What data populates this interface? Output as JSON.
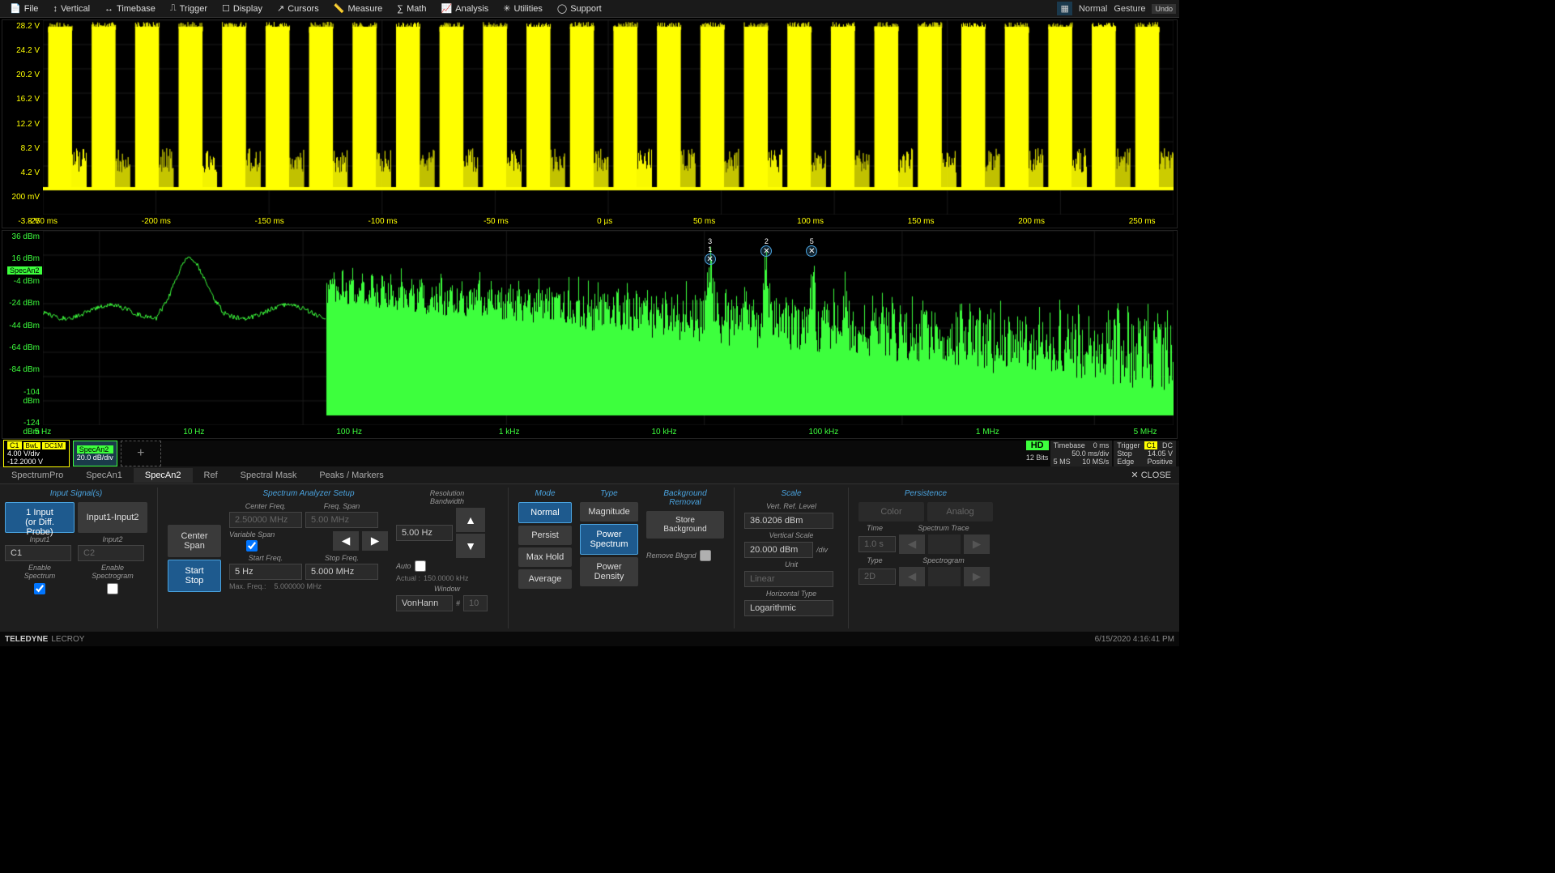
{
  "menubar": {
    "items": [
      "File",
      "Vertical",
      "Timebase",
      "Trigger",
      "Display",
      "Cursors",
      "Measure",
      "Math",
      "Analysis",
      "Utilities",
      "Support"
    ],
    "mode": "Normal",
    "gesture": "Gesture",
    "undo": "Undo"
  },
  "wave_time": {
    "y_labels": [
      "28.2 V",
      "24.2 V",
      "20.2 V",
      "16.2 V",
      "12.2 V",
      "8.2 V",
      "4.2 V",
      "200 mV",
      "-3.8 V"
    ],
    "x_labels": [
      "-250 ms",
      "-200 ms",
      "-150 ms",
      "-100 ms",
      "-50 ms",
      "0 µs",
      "50 ms",
      "100 ms",
      "150 ms",
      "200 ms",
      "250 ms"
    ],
    "color": "#ffff00",
    "grid_color": "#1a1a1a"
  },
  "wave_freq": {
    "y_labels": [
      "36 dBm",
      "16 dBm",
      "-4 dBm",
      "-24 dBm",
      "-44 dBm",
      "-64 dBm",
      "-84 dBm",
      "-104 dBm",
      "-124 dBm"
    ],
    "x_labels": [
      "5 Hz",
      "10 Hz",
      "100 Hz",
      "1 kHz",
      "10 kHz",
      "100 kHz",
      "1 MHz",
      "5 MHz"
    ],
    "color": "#3dff3d",
    "markers": [
      {
        "label": "3",
        "x_pct": 59,
        "label2": "1"
      },
      {
        "label": "2",
        "x_pct": 64
      },
      {
        "label": "5",
        "x_pct": 68
      }
    ],
    "specan_label": "SpecAn2"
  },
  "channels": {
    "c1": {
      "name": "C1",
      "bw": "BwL",
      "dc": "DC1M",
      "vdiv": "4.00 V/div",
      "offset": "-12.2000 V"
    },
    "specan": {
      "name": "SpecAn2",
      "scale": "20.0 dB/div"
    },
    "hd": "HD",
    "bits": "12 Bits",
    "timebase": {
      "label": "Timebase",
      "val": "0 ms",
      "scale": "50.0 ms/div",
      "rate": "10 MS/s",
      "samples": "5 MS"
    },
    "trigger": {
      "label": "Trigger",
      "ch": "C1",
      "mode": "DC",
      "level": "14.05 V",
      "action": "Stop",
      "edge": "Edge",
      "slope": "Positive"
    }
  },
  "tabs": {
    "items": [
      "SpectrumPro",
      "SpecAn1",
      "SpecAn2",
      "Ref",
      "Spectral Mask",
      "Peaks / Markers"
    ],
    "active": 2,
    "close": "CLOSE"
  },
  "panel": {
    "input_signals": {
      "title": "Input Signal(s)",
      "btn1": "1 Input\n(or Diff. Probe)",
      "btn2": "Input1-Input2",
      "input1_label": "Input1",
      "input2_label": "Input2",
      "input1": "C1",
      "input2": "C2",
      "enable_spectrum": "Enable\nSpectrum",
      "enable_spectrogram": "Enable\nSpectrogram"
    },
    "span": {
      "center_span": "Center\nSpan",
      "start_stop": "Start\nStop"
    },
    "freq": {
      "title": "Spectrum Analyzer Setup",
      "center_freq_label": "Center Freq.",
      "center_freq": "2.50000 MHz",
      "freq_span_label": "Freq. Span",
      "freq_span": "5.00 MHz",
      "variable_span": "Variable Span",
      "start_freq_label": "Start Freq.",
      "start_freq": "5 Hz",
      "stop_freq_label": "Stop Freq.",
      "stop_freq": "5.000 MHz",
      "max_freq_label": "Max. Freq.:",
      "max_freq": "5.000000 MHz"
    },
    "resolution": {
      "label": "Resolution\nBandwidth",
      "value": "5.00 Hz",
      "auto_label": "Auto",
      "actual_label": "Actual :",
      "actual": "150.0000 kHz",
      "window_label": "Window",
      "window": "VonHann",
      "hash_label": "#",
      "hash": "10"
    },
    "mode": {
      "title": "Mode",
      "normal": "Normal",
      "persist": "Persist",
      "maxhold": "Max Hold",
      "average": "Average"
    },
    "type": {
      "title": "Type",
      "magnitude": "Magnitude",
      "power_spectrum": "Power\nSpectrum",
      "power_density": "Power\nDensity"
    },
    "background": {
      "title": "Background\nRemoval",
      "store": "Store Background",
      "remove": "Remove Bkgnd"
    },
    "scale": {
      "title": "Scale",
      "vref_label": "Vert. Ref. Level",
      "vref": "36.0206 dBm",
      "vscale_label": "Vertical Scale",
      "vscale": "20.000 dBm",
      "per_div": "/div",
      "unit_label": "Unit",
      "unit": "Linear",
      "htype_label": "Horizontal Type",
      "htype": "Logarithmic"
    },
    "persistence": {
      "title": "Persistence",
      "color": "Color",
      "analog": "Analog",
      "time_label": "Time",
      "spectrum_trace": "Spectrum Trace",
      "time": "1.0 s",
      "type_label": "Type",
      "spectrogram": "Spectrogram",
      "type": "2D"
    }
  },
  "footer": {
    "brand": "TELEDYNE",
    "sub": "LECROY",
    "timestamp": "6/15/2020 4:16:41 PM"
  }
}
